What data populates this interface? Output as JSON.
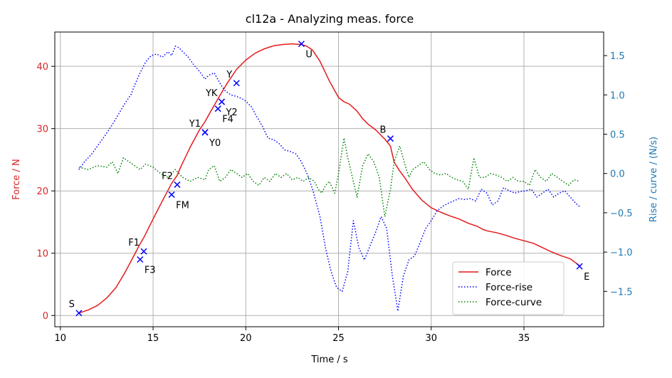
{
  "chart_data": {
    "type": "line",
    "title": "cl12a - Analyzing meas. force",
    "xlabel": "Time / s",
    "ylabel_left": "Force / N",
    "ylabel_right": "Rise / curve /  (N/s)",
    "xlim": [
      9.7,
      39.3
    ],
    "ylim_left": [
      -1.8,
      45.5
    ],
    "ylim_right": [
      -1.95,
      1.8
    ],
    "x_ticks": [
      10,
      15,
      20,
      25,
      30,
      35
    ],
    "y_left_ticks": [
      0,
      10,
      20,
      30,
      40
    ],
    "y_right_ticks": [
      -1.5,
      -1.0,
      -0.5,
      0.0,
      0.5,
      1.0,
      1.5
    ],
    "y_right_tick_labels": [
      "−1.5",
      "−1.0",
      "−0.5",
      "0.0",
      "0.5",
      "1.0",
      "1.5"
    ],
    "grid": true,
    "legend_position": "lower-right",
    "colors": {
      "force": "#e41a1c",
      "rise": "#0000ff",
      "curve": "#008000",
      "marker": "#0000ff",
      "left_axis": "#d62728",
      "right_axis": "#1f77b4",
      "grid": "#b0b0b0"
    },
    "series": [
      {
        "name": "Force",
        "axis": "left",
        "style": "solid",
        "x": [
          11.0,
          11.5,
          12.0,
          12.5,
          13.0,
          13.5,
          14.0,
          14.3,
          14.5,
          15.0,
          15.5,
          16.0,
          16.3,
          16.5,
          17.0,
          17.5,
          17.8,
          18.0,
          18.5,
          19.0,
          19.5,
          20.0,
          20.5,
          21.0,
          21.5,
          22.0,
          22.5,
          23.0,
          23.3,
          23.6,
          24.0,
          24.5,
          25.0,
          25.3,
          25.6,
          26.0,
          26.3,
          26.6,
          27.0,
          27.5,
          27.8,
          28.0,
          28.3,
          28.6,
          29.0,
          29.5,
          30.0,
          30.5,
          31.0,
          31.5,
          32.0,
          32.5,
          32.8,
          33.0,
          33.5,
          34.0,
          34.5,
          35.0,
          35.5,
          36.0,
          36.5,
          37.0,
          37.5,
          38.0
        ],
        "y": [
          0.4,
          0.9,
          1.6,
          2.8,
          4.5,
          7.0,
          9.8,
          11.5,
          12.5,
          15.5,
          18.4,
          21.2,
          22.5,
          23.9,
          27.0,
          29.8,
          31.1,
          32.2,
          34.8,
          37.3,
          39.5,
          41.0,
          42.1,
          42.8,
          43.3,
          43.5,
          43.6,
          43.5,
          43.2,
          42.6,
          40.8,
          37.7,
          35.0,
          34.3,
          33.9,
          32.8,
          31.6,
          30.7,
          29.8,
          28.3,
          27.2,
          24.6,
          23.2,
          22.0,
          20.2,
          18.5,
          17.3,
          16.6,
          16.0,
          15.5,
          14.8,
          14.3,
          13.8,
          13.6,
          13.3,
          12.9,
          12.4,
          12.0,
          11.6,
          10.9,
          10.2,
          9.6,
          9.1,
          8.0
        ]
      },
      {
        "name": "Force-rise",
        "axis": "right",
        "style": "dotted",
        "x": [
          11.0,
          11.3,
          11.7,
          12.0,
          12.4,
          12.8,
          13.2,
          13.5,
          13.8,
          14.0,
          14.3,
          14.6,
          14.9,
          15.2,
          15.5,
          15.8,
          16.0,
          16.2,
          16.4,
          16.6,
          16.9,
          17.2,
          17.5,
          17.8,
          18.0,
          18.3,
          18.6,
          18.9,
          19.2,
          19.5,
          19.8,
          20.0,
          20.3,
          20.6,
          20.9,
          21.2,
          21.5,
          21.8,
          22.1,
          22.4,
          22.7,
          23.0,
          23.3,
          23.6,
          24.0,
          24.3,
          24.6,
          24.9,
          25.2,
          25.5,
          25.8,
          26.1,
          26.4,
          26.7,
          27.0,
          27.3,
          27.6,
          27.9,
          28.2,
          28.5,
          28.8,
          29.1,
          29.4,
          29.7,
          30.0,
          30.3,
          30.6,
          30.9,
          31.2,
          31.5,
          31.8,
          32.1,
          32.4,
          32.7,
          33.0,
          33.3,
          33.6,
          33.9,
          34.2,
          34.5,
          34.8,
          35.1,
          35.4,
          35.7,
          36.0,
          36.3,
          36.6,
          36.9,
          37.2,
          37.5,
          37.8,
          38.0
        ],
        "y": [
          0.05,
          0.15,
          0.25,
          0.35,
          0.48,
          0.62,
          0.78,
          0.9,
          1.0,
          1.12,
          1.28,
          1.42,
          1.5,
          1.52,
          1.48,
          1.55,
          1.5,
          1.62,
          1.6,
          1.55,
          1.48,
          1.38,
          1.3,
          1.2,
          1.25,
          1.28,
          1.15,
          1.05,
          1.0,
          0.98,
          0.95,
          0.92,
          0.85,
          0.72,
          0.6,
          0.45,
          0.43,
          0.38,
          0.3,
          0.28,
          0.25,
          0.15,
          0.0,
          -0.2,
          -0.55,
          -0.95,
          -1.25,
          -1.45,
          -1.5,
          -1.25,
          -0.6,
          -0.95,
          -1.1,
          -0.92,
          -0.75,
          -0.55,
          -0.7,
          -1.3,
          -1.75,
          -1.3,
          -1.1,
          -1.05,
          -0.88,
          -0.7,
          -0.6,
          -0.48,
          -0.42,
          -0.38,
          -0.35,
          -0.32,
          -0.33,
          -0.32,
          -0.35,
          -0.2,
          -0.25,
          -0.4,
          -0.35,
          -0.18,
          -0.22,
          -0.25,
          -0.23,
          -0.22,
          -0.2,
          -0.3,
          -0.25,
          -0.2,
          -0.3,
          -0.25,
          -0.22,
          -0.3,
          -0.38,
          -0.42
        ]
      },
      {
        "name": "Force-curve",
        "axis": "right",
        "style": "dotted",
        "x": [
          11.0,
          11.5,
          12.0,
          12.5,
          12.8,
          13.1,
          13.4,
          13.7,
          14.0,
          14.3,
          14.6,
          15.0,
          15.4,
          15.8,
          16.2,
          16.6,
          17.0,
          17.4,
          17.8,
          18.0,
          18.3,
          18.6,
          18.9,
          19.2,
          19.5,
          19.8,
          20.1,
          20.4,
          20.7,
          21.0,
          21.3,
          21.6,
          21.9,
          22.2,
          22.5,
          22.8,
          23.1,
          23.4,
          23.7,
          23.9,
          24.1,
          24.3,
          24.5,
          24.8,
          25.0,
          25.3,
          25.5,
          25.8,
          26.0,
          26.3,
          26.6,
          26.9,
          27.2,
          27.5,
          27.8,
          28.0,
          28.3,
          28.6,
          28.8,
          29.0,
          29.3,
          29.6,
          29.9,
          30.2,
          30.5,
          30.8,
          31.1,
          31.4,
          31.7,
          32.0,
          32.3,
          32.6,
          32.9,
          33.2,
          33.5,
          33.8,
          34.1,
          34.4,
          34.7,
          35.0,
          35.3,
          35.6,
          35.9,
          36.2,
          36.5,
          36.8,
          37.1,
          37.4,
          37.7,
          38.0
        ],
        "y": [
          0.08,
          0.05,
          0.1,
          0.08,
          0.15,
          0.0,
          0.2,
          0.15,
          0.1,
          0.05,
          0.12,
          0.08,
          0.0,
          -0.05,
          0.05,
          -0.05,
          -0.1,
          -0.05,
          -0.08,
          0.05,
          0.1,
          -0.1,
          -0.05,
          0.05,
          0.0,
          -0.05,
          0.0,
          -0.1,
          -0.15,
          -0.05,
          -0.1,
          0.0,
          -0.05,
          0.0,
          -0.08,
          -0.05,
          -0.1,
          -0.05,
          -0.1,
          -0.2,
          -0.25,
          -0.15,
          -0.1,
          -0.25,
          0.0,
          0.45,
          0.2,
          -0.1,
          -0.3,
          0.1,
          0.25,
          0.15,
          -0.05,
          -0.55,
          -0.2,
          0.15,
          0.35,
          0.1,
          -0.05,
          0.05,
          0.1,
          0.15,
          0.05,
          0.0,
          -0.02,
          0.0,
          -0.05,
          -0.08,
          -0.1,
          -0.2,
          0.2,
          -0.05,
          -0.05,
          0.0,
          -0.02,
          -0.05,
          -0.1,
          -0.05,
          -0.1,
          -0.1,
          -0.15,
          0.05,
          -0.05,
          -0.1,
          0.0,
          -0.05,
          -0.1,
          -0.15,
          -0.08,
          -0.1
        ]
      }
    ],
    "markers": [
      {
        "label": "S",
        "x": 11.0,
        "y": 0.4,
        "label_pos": "upper-left"
      },
      {
        "label": "F1",
        "x": 14.5,
        "y": 10.3,
        "label_pos": "upper-left"
      },
      {
        "label": "F3",
        "x": 14.3,
        "y": 9.0,
        "label_pos": "lower-right"
      },
      {
        "label": "FM",
        "x": 16.0,
        "y": 19.4,
        "label_pos": "lower-right"
      },
      {
        "label": "F2",
        "x": 16.3,
        "y": 21.0,
        "label_pos": "upper-left"
      },
      {
        "label": "Y1",
        "x": 17.8,
        "y": 29.4,
        "label_pos": "upper-left"
      },
      {
        "label": "Y0",
        "x": 17.8,
        "y": 29.4,
        "label_pos": "lower-right"
      },
      {
        "label": "F4",
        "x": 18.5,
        "y": 33.2,
        "label_pos": "lower-right"
      },
      {
        "label": "YK",
        "x": 18.7,
        "y": 34.3,
        "label_pos": "upper-left"
      },
      {
        "label": "Y2",
        "x": 18.7,
        "y": 34.3,
        "label_pos": "lower-right"
      },
      {
        "label": "Y",
        "x": 19.5,
        "y": 37.3,
        "label_pos": "upper-left"
      },
      {
        "label": "U",
        "x": 23.0,
        "y": 43.6,
        "label_pos": "lower-right"
      },
      {
        "label": "B",
        "x": 27.8,
        "y": 28.4,
        "label_pos": "upper-left"
      },
      {
        "label": "E",
        "x": 38.0,
        "y": 7.9,
        "label_pos": "lower-right"
      }
    ]
  }
}
